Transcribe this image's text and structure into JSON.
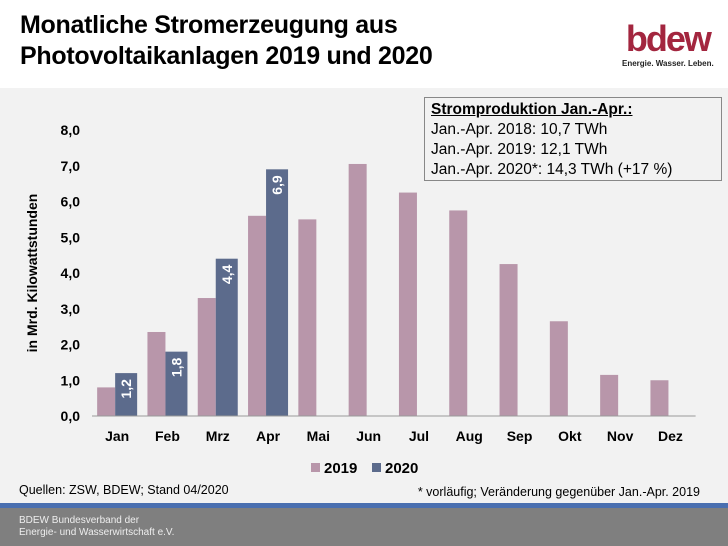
{
  "header": {
    "title_line1": "Monatliche Stromerzeugung aus",
    "title_line2": "Photovoltaikanlagen 2019 und 2020",
    "logo_text": "bdew",
    "logo_tagline": "Energie. Wasser. Leben."
  },
  "infobox": {
    "heading": "Stromproduktion Jan.-Apr.:",
    "lines": [
      "Jan.-Apr. 2018:  10,7 TWh",
      "Jan.-Apr. 2019:  12,1 TWh",
      "Jan.-Apr. 2020*: 14,3 TWh (+17 %)"
    ]
  },
  "source": "Quellen: ZSW, BDEW; Stand 04/2020",
  "note": "* vorläufig; Veränderung gegenüber Jan.-Apr. 2019",
  "footer": {
    "line1": "BDEW Bundesverband der",
    "line2": "Energie- und Wasserwirtschaft e.V."
  },
  "colors": {
    "s2019": "#b896aa",
    "s2020": "#5c6b8c"
  },
  "chart_data": {
    "type": "bar",
    "title": "Monatliche Stromerzeugung aus Photovoltaikanlagen 2019 und 2020",
    "ylabel": "in Mrd. Kilowattstunden",
    "ylim": [
      0,
      8
    ],
    "yticks": [
      "0,0",
      "1,0",
      "2,0",
      "3,0",
      "4,0",
      "5,0",
      "6,0",
      "7,0",
      "8,0"
    ],
    "categories": [
      "Jan",
      "Feb",
      "Mrz",
      "Apr",
      "Mai",
      "Jun",
      "Jul",
      "Aug",
      "Sep",
      "Okt",
      "Nov",
      "Dez"
    ],
    "series": [
      {
        "name": "2019",
        "values": [
          0.8,
          2.35,
          3.3,
          5.6,
          5.5,
          7.05,
          6.25,
          5.75,
          4.25,
          2.65,
          1.15,
          1.0
        ]
      },
      {
        "name": "2020",
        "values": [
          1.2,
          1.8,
          4.4,
          6.9,
          null,
          null,
          null,
          null,
          null,
          null,
          null,
          null
        ],
        "labels": [
          "1,2",
          "1,8",
          "4,4",
          "6,9"
        ]
      }
    ],
    "legend": "bottom"
  }
}
